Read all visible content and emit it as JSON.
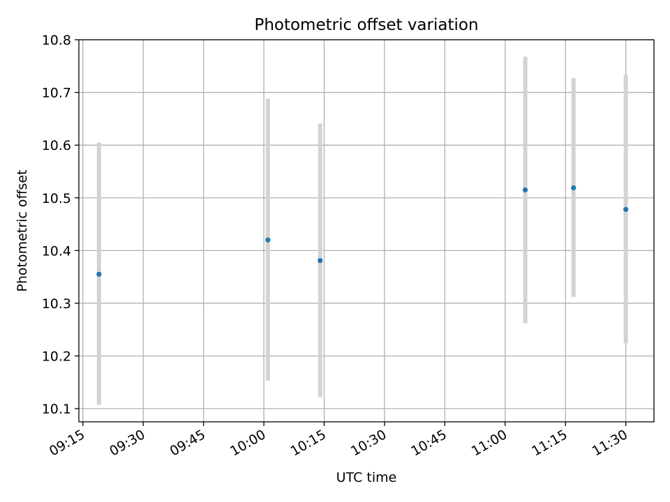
{
  "chart_data": {
    "type": "scatter",
    "title": "Photometric offset variation",
    "xlabel": "UTC time",
    "ylabel": "Photometric offset",
    "grid": true,
    "x_ticks": [
      "09:15",
      "09:30",
      "09:45",
      "10:00",
      "10:15",
      "10:30",
      "10:45",
      "11:00",
      "11:15",
      "11:30"
    ],
    "y_ticks": [
      "10.1",
      "10.2",
      "10.3",
      "10.4",
      "10.5",
      "10.6",
      "10.7",
      "10.8"
    ],
    "xlim": [
      "09:14",
      "11:37"
    ],
    "ylim": [
      10.075,
      10.8
    ],
    "series": [
      {
        "points": [
          {
            "x": "09:19",
            "y": 10.355,
            "err_low": 10.107,
            "err_high": 10.605
          },
          {
            "x": "10:01",
            "y": 10.42,
            "err_low": 10.153,
            "err_high": 10.688
          },
          {
            "x": "10:14",
            "y": 10.381,
            "err_low": 10.122,
            "err_high": 10.641
          },
          {
            "x": "11:05",
            "y": 10.515,
            "err_low": 10.262,
            "err_high": 10.768
          },
          {
            "x": "11:17",
            "y": 10.519,
            "err_low": 10.312,
            "err_high": 10.727
          },
          {
            "x": "11:30",
            "y": 10.478,
            "err_low": 10.224,
            "err_high": 10.733
          }
        ]
      }
    ],
    "colors": {
      "marker": "#1f77b4",
      "errorbar": "#d3d3d3",
      "grid": "#b0b0b0"
    }
  }
}
